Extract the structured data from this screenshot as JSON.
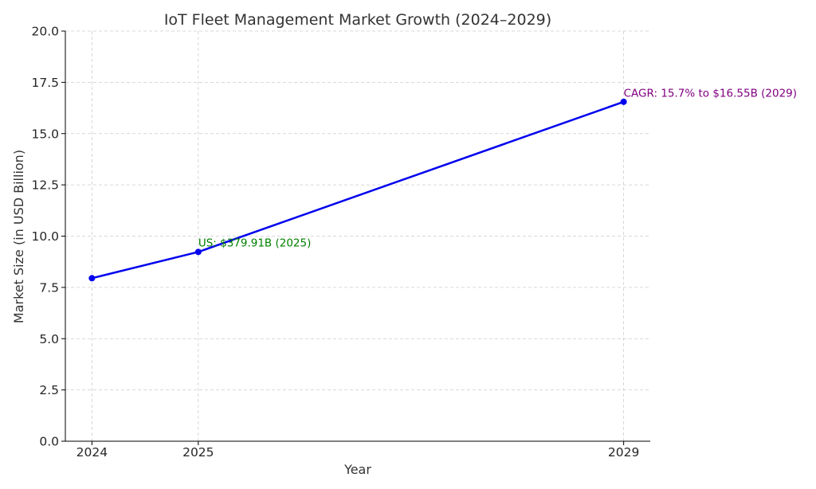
{
  "chart_data": {
    "type": "line",
    "title": "IoT Fleet Management Market Growth (2024–2029)",
    "xlabel": "Year",
    "ylabel": "Market Size (in USD Billion)",
    "xlim": [
      2023.75,
      2029.25
    ],
    "ylim": [
      0,
      20
    ],
    "xticks": [
      2024,
      2025,
      2029
    ],
    "yticks": [
      0.0,
      2.5,
      5.0,
      7.5,
      10.0,
      12.5,
      15.0,
      17.5,
      20.0
    ],
    "ytick_labels": [
      "0.0",
      "2.5",
      "5.0",
      "7.5",
      "10.0",
      "12.5",
      "15.0",
      "17.5",
      "20.0"
    ],
    "grid": true,
    "series": [
      {
        "name": "Market Size",
        "color": "#0000ee",
        "x": [
          2024,
          2025,
          2029
        ],
        "y": [
          7.95,
          9.23,
          16.55
        ]
      }
    ],
    "annotations": [
      {
        "text": "US: $379.91B (2025)",
        "x": 2025,
        "y": 9.5,
        "color": "#008000"
      },
      {
        "text": "CAGR: 15.7% to $16.55B (2029)",
        "x": 2029,
        "y": 16.8,
        "color": "#800080"
      }
    ]
  }
}
